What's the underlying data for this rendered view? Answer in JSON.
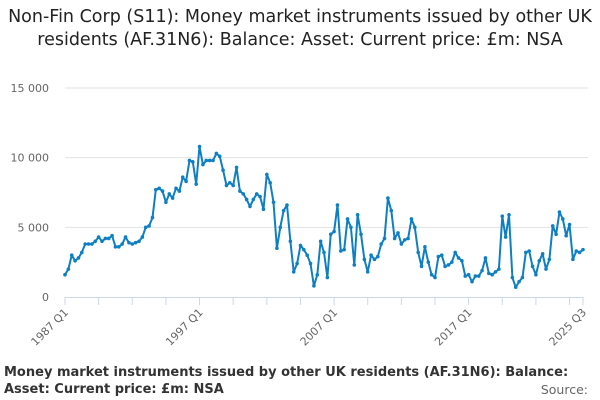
{
  "chart_data": {
    "type": "line",
    "title": "Non-Fin Corp (S11): Money market instruments issued by other UK residents (AF.31N6): Balance: Asset: Current price: £m: NSA",
    "subtitle": "Money market instruments issued by other UK residents (AF.31N6): Balance: Asset: Current price: £m: NSA",
    "source_label": "Source:",
    "x_start": "1987 Q1",
    "x_end": "2025 Q3",
    "frequency": "quarterly",
    "x_tick_labels": [
      "1987 Q1",
      "1997 Q1",
      "2007 Q1",
      "2017 Q1",
      "2025 Q3"
    ],
    "y_ticks": [
      0,
      5000,
      10000,
      15000
    ],
    "y_tick_labels": [
      "0",
      "5 000",
      "10 000",
      "15 000"
    ],
    "ylim": [
      0,
      15000
    ],
    "grid": true,
    "line_color": "#0f7fc4",
    "values": [
      1600,
      2000,
      3000,
      2600,
      2800,
      3200,
      3800,
      3800,
      3800,
      4000,
      4300,
      4000,
      4200,
      4200,
      4400,
      3600,
      3600,
      3800,
      4300,
      3900,
      3800,
      3900,
      4000,
      4300,
      5000,
      5100,
      5700,
      7700,
      7800,
      7600,
      6800,
      7400,
      7100,
      7800,
      7600,
      8600,
      8300,
      9800,
      9700,
      8100,
      10800,
      9500,
      9800,
      9800,
      9800,
      10300,
      10100,
      9100,
      8000,
      8200,
      8000,
      9300,
      7600,
      7400,
      7000,
      6500,
      7000,
      7400,
      7200,
      6300,
      8800,
      8200,
      6800,
      3500,
      5000,
      6200,
      6600,
      4000,
      1800,
      2400,
      3700,
      3400,
      3000,
      2400,
      800,
      1600,
      4000,
      3200,
      1400,
      4500,
      4700,
      6600,
      3300,
      3400,
      5600,
      5000,
      2300,
      5900,
      4500,
      2700,
      1800,
      3000,
      2700,
      2900,
      3800,
      4200,
      7100,
      6200,
      4200,
      4600,
      3800,
      4100,
      4200,
      5600,
      5000,
      3200,
      2200,
      3600,
      2500,
      1600,
      1400,
      2900,
      3000,
      2200,
      2300,
      2500,
      3200,
      2800,
      2600,
      1500,
      1600,
      1100,
      1500,
      1500,
      1900,
      2800,
      1700,
      1600,
      1800,
      2000,
      5800,
      4300,
      5900,
      1400,
      700,
      1100,
      1400,
      3200,
      3300,
      2200,
      1600,
      2600,
      3100,
      2000,
      2700,
      5100,
      4500,
      6100,
      5600,
      4400,
      5200,
      2700,
      3300,
      3200,
      3400
    ]
  }
}
